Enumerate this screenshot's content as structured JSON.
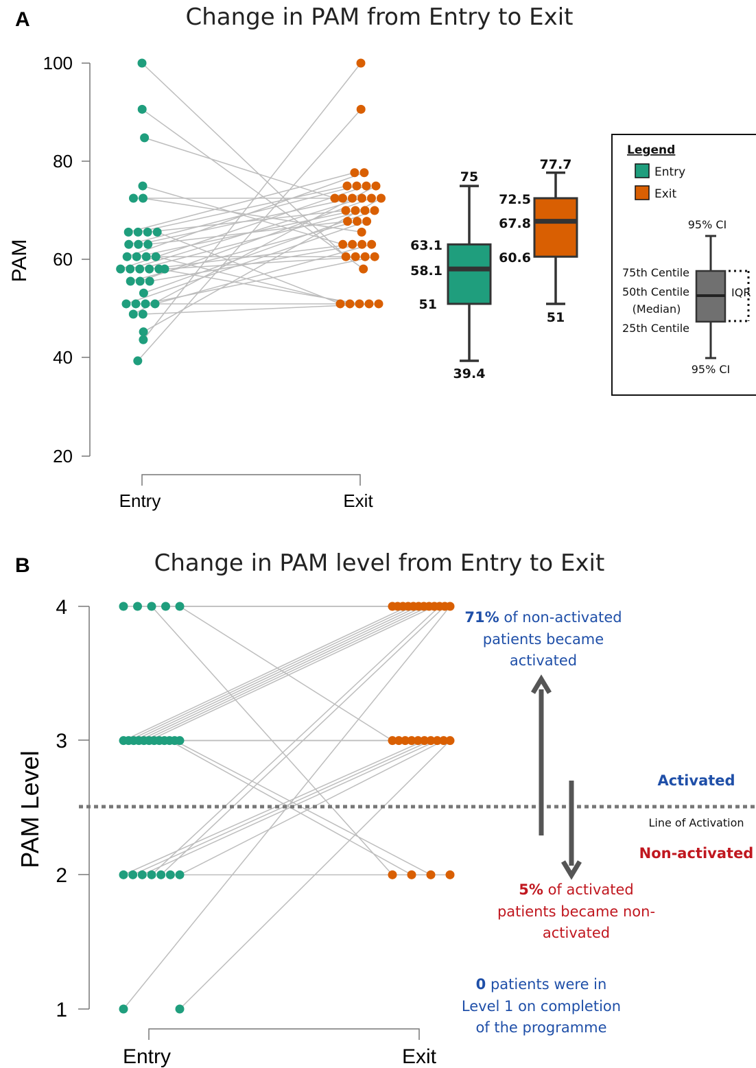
{
  "colors": {
    "entry": "#1f9e7d",
    "exit": "#d95f02",
    "line": "#bdbdbd",
    "box_gray": "#707070",
    "blue": "#1f4fa8",
    "red": "#c0171f"
  },
  "panel_a": {
    "letter": "A",
    "title": "Change in PAM from Entry to Exit",
    "ylabel": "PAM",
    "yticks": [
      "20",
      "40",
      "60",
      "80",
      "100"
    ],
    "xticks": [
      "Entry",
      "Exit"
    ],
    "box_entry": {
      "max": "75",
      "q3": "63.1",
      "median": "58.1",
      "q1": "51",
      "min": "39.4"
    },
    "box_exit": {
      "max": "77.7",
      "q3": "72.5",
      "median": "67.8",
      "q1": "60.6",
      "min": "51"
    },
    "legend": {
      "title": "Legend",
      "entry": "Entry",
      "exit": "Exit",
      "ci_top": "95% CI",
      "ci_bottom": "95% CI",
      "c75": "75th Centile",
      "c50": "50th Centile",
      "median": "(Median)",
      "c25": "25th Centile",
      "iqr": "IQR"
    }
  },
  "panel_b": {
    "letter": "B",
    "title": "Change in PAM level from Entry to Exit",
    "ylabel": "PAM Level",
    "yticks": [
      "1",
      "2",
      "3",
      "4"
    ],
    "xticks": [
      "Entry",
      "Exit"
    ],
    "activated": "Activated",
    "line_label": "Line of Activation",
    "non_activated": "Non-activated",
    "ann1_bold": "71%",
    "ann1_l1": "of non-activated",
    "ann1_l2": "patients became",
    "ann1_l3": "activated",
    "ann2_bold": "5%",
    "ann2_l1": "of activated",
    "ann2_l2": "patients became non-",
    "ann2_l3": "activated",
    "ann3_bold": "0",
    "ann3_l1": "patients were in",
    "ann3_l2": "Level 1 on completion",
    "ann3_l3": "of the programme"
  },
  "chart_data": [
    {
      "type": "scatter",
      "title": "Change in PAM from Entry to Exit",
      "ylabel": "PAM",
      "ylim": [
        20,
        100
      ],
      "categories": [
        "Entry",
        "Exit"
      ],
      "pairs": [
        [
          100,
          60.6
        ],
        [
          90.6,
          58.1
        ],
        [
          84.8,
          72.5
        ],
        [
          75,
          63.1
        ],
        [
          72.5,
          72.5
        ],
        [
          72.5,
          65.6
        ],
        [
          65.6,
          77.7
        ],
        [
          65.6,
          75
        ],
        [
          65.6,
          70
        ],
        [
          65.6,
          51
        ],
        [
          63.1,
          75
        ],
        [
          63.1,
          72.5
        ],
        [
          63.1,
          67.8
        ],
        [
          60.6,
          77.7
        ],
        [
          60.6,
          70
        ],
        [
          60.6,
          60.6
        ],
        [
          60.6,
          51
        ],
        [
          58.1,
          75
        ],
        [
          58.1,
          72.5
        ],
        [
          58.1,
          70
        ],
        [
          58.1,
          63.1
        ],
        [
          58.1,
          51
        ],
        [
          58.1,
          60.6
        ],
        [
          55.6,
          67.8
        ],
        [
          55.6,
          72.5
        ],
        [
          55.6,
          63.1
        ],
        [
          53.2,
          70
        ],
        [
          51,
          67.8
        ],
        [
          51,
          51
        ],
        [
          51,
          60.6
        ],
        [
          51,
          63.1
        ],
        [
          48.9,
          75
        ],
        [
          48.9,
          51
        ],
        [
          45.3,
          72.5
        ],
        [
          43.7,
          100
        ],
        [
          39.4,
          90.6
        ]
      ],
      "boxplots": [
        {
          "name": "Entry",
          "min": 39.4,
          "q1": 51,
          "median": 58.1,
          "q3": 63.1,
          "max": 75
        },
        {
          "name": "Exit",
          "min": 51,
          "q1": 60.6,
          "median": 67.8,
          "q3": 72.5,
          "max": 77.7
        }
      ]
    },
    {
      "type": "scatter",
      "title": "Change in PAM level from Entry to Exit",
      "ylabel": "PAM Level",
      "ylim": [
        1,
        4
      ],
      "categories": [
        "Entry",
        "Exit"
      ],
      "pairs": [
        [
          4,
          4
        ],
        [
          4,
          4
        ],
        [
          4,
          2
        ],
        [
          4,
          4
        ],
        [
          4,
          3
        ],
        [
          3,
          4
        ],
        [
          3,
          4
        ],
        [
          3,
          4
        ],
        [
          3,
          4
        ],
        [
          3,
          4
        ],
        [
          3,
          4
        ],
        [
          3,
          3
        ],
        [
          3,
          3
        ],
        [
          3,
          3
        ],
        [
          3,
          2
        ],
        [
          3,
          2
        ],
        [
          3,
          3
        ],
        [
          2,
          3
        ],
        [
          2,
          3
        ],
        [
          2,
          3
        ],
        [
          2,
          4
        ],
        [
          2,
          4
        ],
        [
          2,
          2
        ],
        [
          2,
          3
        ],
        [
          1,
          4
        ],
        [
          1,
          3
        ]
      ],
      "threshold": 2.5
    }
  ]
}
